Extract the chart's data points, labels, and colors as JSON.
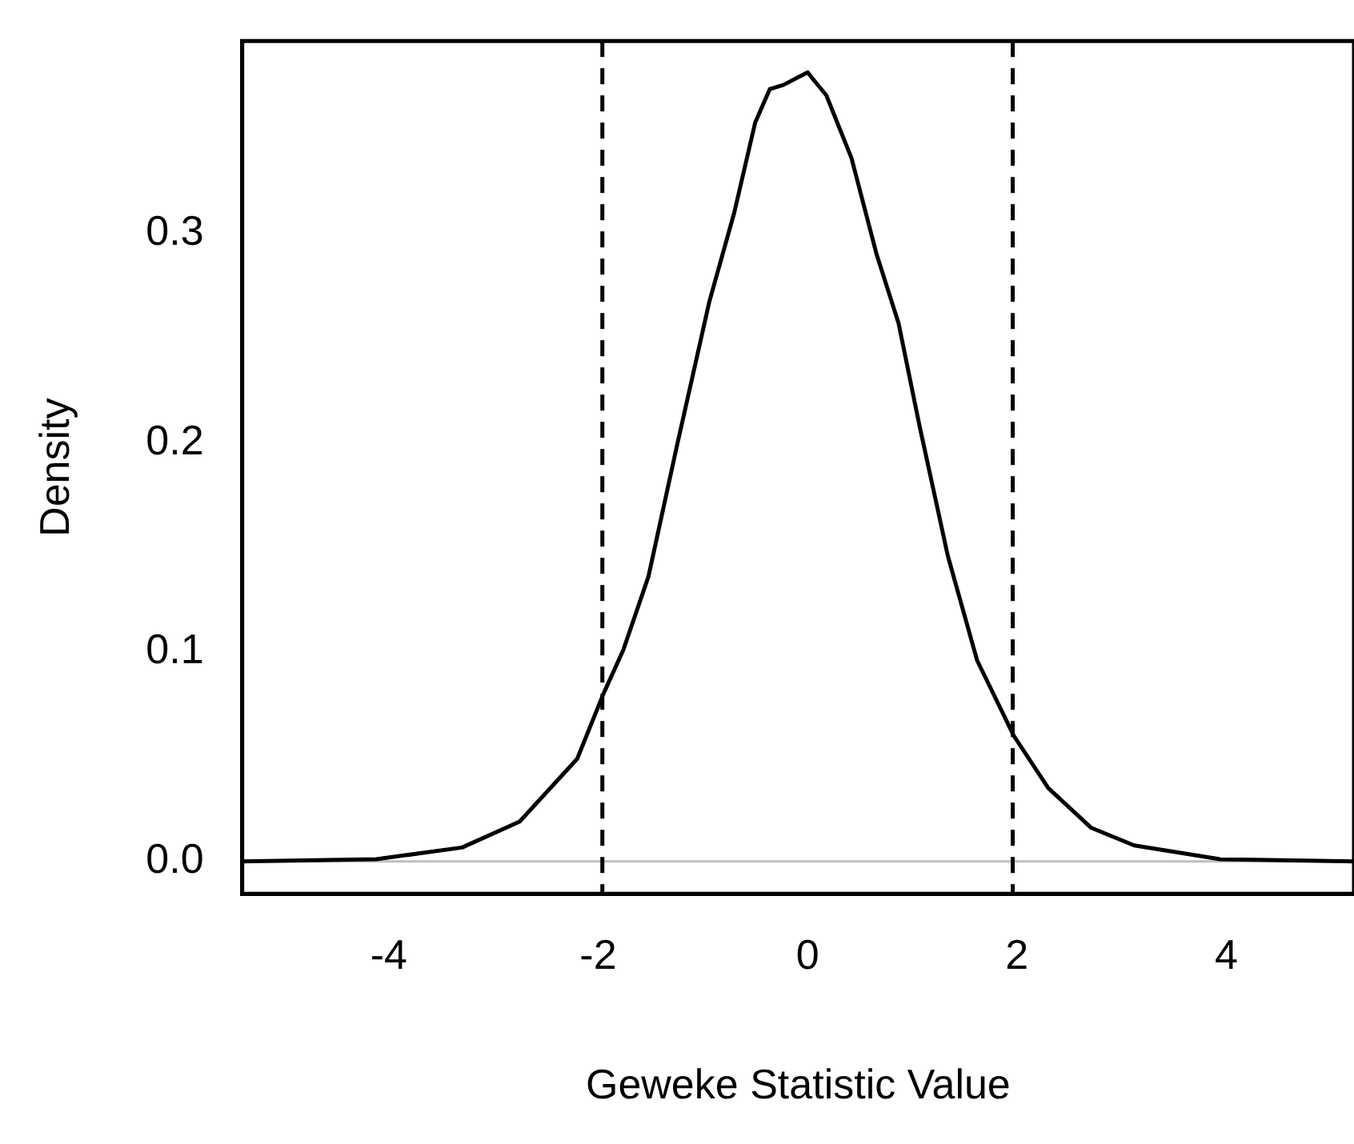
{
  "chart_data": {
    "type": "line",
    "xlabel": "Geweke Statistic Value",
    "ylabel": "Density",
    "x": [
      -5.4,
      -4.12,
      -3.3,
      -2.75,
      -2.2,
      -1.95,
      -1.76,
      -1.52,
      -1.25,
      -0.94,
      -0.7,
      -0.5,
      -0.36,
      -0.23,
      0,
      0.18,
      0.42,
      0.66,
      0.87,
      1.07,
      1.34,
      1.62,
      1.97,
      2.3,
      2.71,
      3.12,
      3.94,
      5.22
    ],
    "series": [
      {
        "color": "#000000",
        "values": [
          0,
          0.001,
          0.0066,
          0.019,
          0.049,
          0.08,
          0.101,
          0.136,
          0.198,
          0.267,
          0.31,
          0.353,
          0.369,
          0.371,
          0.377,
          0.366,
          0.336,
          0.29,
          0.257,
          0.208,
          0.146,
          0.096,
          0.06,
          0.035,
          0.016,
          0.0076,
          0.001,
          0
        ]
      }
    ],
    "xlim": [
      -5.4,
      5.22
    ],
    "xticks": [
      -4,
      -2,
      0,
      2,
      4
    ],
    "ylim": [
      -0.0155,
      0.392
    ],
    "yticks": [
      {
        "value": 0,
        "label": "0.0"
      },
      0.1,
      0.2,
      0.3
    ],
    "ref_lines": [
      {
        "axis": "y",
        "value": 0,
        "color": "#bebebe",
        "line_style": "solid"
      },
      {
        "axis": "x",
        "value": -1.96,
        "color": "#000000",
        "line_style": "dashed"
      },
      {
        "axis": "x",
        "value": 1.96,
        "color": "#000000",
        "line_style": "dashed"
      }
    ],
    "grid": false,
    "legend": false,
    "marker": "none",
    "line_style": "solid"
  }
}
